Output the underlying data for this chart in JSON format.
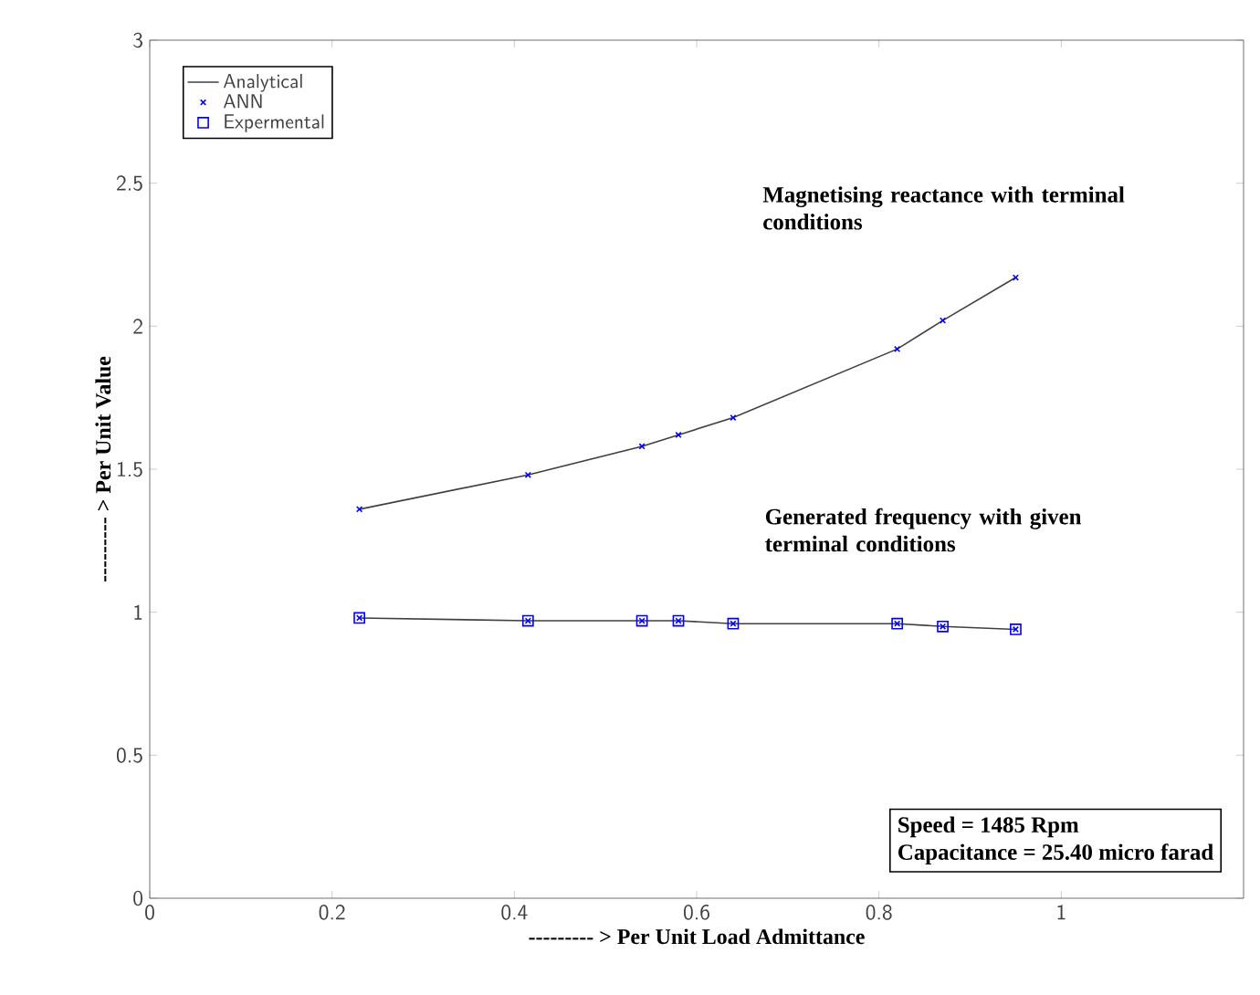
{
  "chart_data": {
    "type": "line",
    "xlabel": "--------- > Per Unit Load Admittance",
    "ylabel": "--------- > Per Unit Value",
    "xlim": [
      0,
      1.2
    ],
    "xticks": [
      0,
      0.2,
      0.4,
      0.6,
      0.8,
      1
    ],
    "ylim": [
      0,
      3
    ],
    "yticks": [
      0,
      0.5,
      1,
      1.5,
      2,
      2.5,
      3
    ],
    "grid": false,
    "legend": "top left",
    "series": [
      {
        "name": "Analytical",
        "color": "#404040",
        "marker": "none",
        "line_style": "solid",
        "x": [
          0.23,
          0.415,
          0.54,
          0.58,
          0.64,
          0.82,
          0.87,
          0.95
        ],
        "values": [
          1.36,
          1.48,
          1.58,
          1.62,
          1.68,
          1.92,
          2.02,
          2.17
        ]
      },
      {
        "name": "ANN",
        "type": "scatter",
        "color": "#0000ff",
        "marker": "cross",
        "x": [
          0.23,
          0.415,
          0.54,
          0.58,
          0.64,
          0.82,
          0.87,
          0.95
        ],
        "values": [
          1.36,
          1.48,
          1.58,
          1.62,
          1.68,
          1.92,
          2.02,
          2.17
        ]
      },
      {
        "name": "Expermental",
        "type": "scatter",
        "color": "#0000ff",
        "marker": "square",
        "x": [
          0.23,
          0.415,
          0.54,
          0.58,
          0.64,
          0.82,
          0.87,
          0.95
        ],
        "values": [
          0.98,
          0.97,
          0.97,
          0.97,
          0.96,
          0.96,
          0.95,
          0.94
        ]
      },
      {
        "color": "#404040",
        "marker": "none",
        "line_style": "solid",
        "x": [
          0.23,
          0.415,
          0.54,
          0.58,
          0.64,
          0.82,
          0.87,
          0.95
        ],
        "values": [
          0.98,
          0.97,
          0.97,
          0.97,
          0.96,
          0.96,
          0.95,
          0.94
        ]
      },
      {
        "type": "scatter",
        "color": "#0000ff",
        "marker": "cross",
        "x": [
          0.23,
          0.415,
          0.54,
          0.58,
          0.64,
          0.82,
          0.87,
          0.95
        ],
        "values": [
          0.98,
          0.97,
          0.97,
          0.97,
          0.96,
          0.96,
          0.95,
          0.94
        ]
      }
    ],
    "annotations": [
      "Magnetising reactance with terminal conditions",
      "Generated frequency with given terminal conditions",
      "Speed = 1485 Rpm",
      "Capacitance = 25.40 micro farad"
    ]
  }
}
